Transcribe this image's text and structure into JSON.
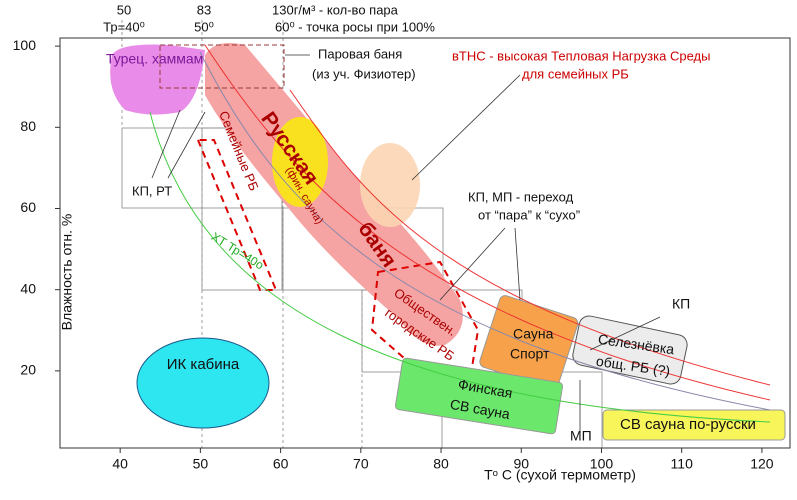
{
  "plot": {
    "x_label": "Tᵒ C (сухой термометр)",
    "y_label": "Влажность отн. %",
    "xlim": [
      32.5,
      123.5
    ],
    "ylim": [
      1,
      102
    ],
    "xticks": [
      40,
      50,
      60,
      70,
      80,
      90,
      100,
      110,
      120
    ],
    "yticks": [
      20,
      40,
      60,
      80,
      100
    ]
  },
  "top_scale": [
    "50",
    "Тр=40⁰",
    "83",
    "50⁰",
    "130г/м³ - кол-во пара",
    "60⁰ - точка росы при 100%"
  ],
  "zones": {
    "hammam": "Турец. хаммам",
    "steam_bath": "Паровая баня",
    "steam_bath_note": "(из уч. Физиотер)",
    "vtns_1": "вТНС - высокая  Тепловая Нагрузка Среды",
    "vtns_2": "для семейных РБ",
    "russian_1": "Русская",
    "russian_note": "(фин. сауна)",
    "russian_2": "баня",
    "family": "Семейные РБ",
    "kp_rt": "КП, РТ",
    "ht": "ХТ  Тр=40о",
    "transition_1": "КП, МП - переход",
    "transition_2": "от “пара” к “сухо”",
    "public_1": "Общеcтвен.",
    "public_2": "городские РБ",
    "sport_1": "Сауна",
    "sport_2": "Спорт",
    "kp": "КП",
    "selez_1": "Селезнёвка",
    "selez_2": "общ. РБ (?)",
    "ik": "ИК кабина",
    "finnish_1": "Финская",
    "finnish_2": "СВ сауна",
    "mp": "МП",
    "sv_russian": "СВ сауна по-русски"
  }
}
